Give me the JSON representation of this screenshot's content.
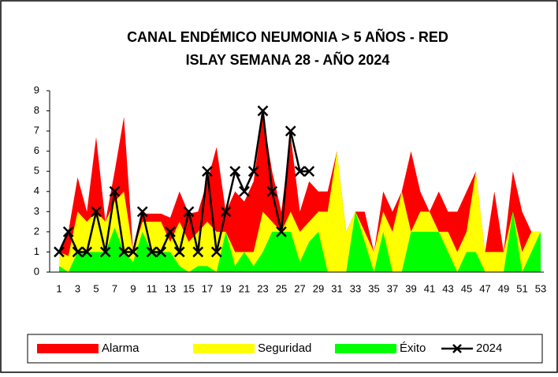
{
  "chart_data": {
    "type": "area",
    "title": "CANAL ENDÉMICO NEUMONIA > 5 AÑOS - RED",
    "subtitle": "ISLAY SEMANA 28 -  AÑO 2024",
    "categories": [
      1,
      null,
      3,
      null,
      5,
      null,
      7,
      null,
      9,
      null,
      11,
      null,
      13,
      null,
      15,
      null,
      17,
      null,
      19,
      null,
      21,
      null,
      23,
      null,
      25,
      null,
      27,
      null,
      29,
      null,
      31,
      null,
      33,
      null,
      35,
      null,
      37,
      null,
      39,
      null,
      41,
      null,
      43,
      null,
      45,
      null,
      47,
      null,
      49,
      null,
      51,
      null,
      53
    ],
    "ylim": [
      0,
      9
    ],
    "yticks": [
      0,
      1,
      2,
      3,
      4,
      5,
      6,
      7,
      8,
      9
    ],
    "series": [
      {
        "name": "Alarma",
        "color": "#ff0000",
        "values": [
          1,
          2,
          4.7,
          3,
          6.7,
          2.5,
          5,
          7.7,
          1,
          2.9,
          2.9,
          2.9,
          2.7,
          4,
          2.9,
          3,
          4.5,
          6.2,
          3,
          4,
          3.5,
          4.5,
          7.8,
          5,
          3,
          6.8,
          3,
          4.5,
          4,
          4,
          6,
          2,
          3,
          3,
          1,
          4,
          3,
          4,
          6,
          4,
          3,
          4,
          3,
          3,
          4,
          5,
          1,
          4,
          1,
          5,
          3,
          2,
          2
        ]
      },
      {
        "name": "Seguridad",
        "color": "#ffff00",
        "values": [
          1,
          0.8,
          3,
          2.5,
          3,
          2.5,
          3.5,
          4,
          1,
          2.5,
          2.5,
          2.5,
          1.5,
          2.5,
          1.5,
          2,
          2.5,
          2,
          2,
          1,
          1,
          1,
          3,
          2.5,
          2,
          3,
          2,
          2.5,
          3,
          3,
          6,
          2,
          3,
          2,
          1,
          3,
          2,
          4,
          2,
          3,
          3,
          2,
          2,
          1,
          2,
          5,
          1,
          1,
          1,
          3,
          1,
          2,
          2
        ]
      },
      {
        "name": "Éxito",
        "color": "#00ff00",
        "values": [
          0.3,
          0,
          1,
          1,
          1,
          1,
          2.2,
          1,
          0.5,
          2,
          1,
          1,
          1,
          0.3,
          0,
          0.3,
          0.3,
          0,
          2,
          0.3,
          1,
          0.3,
          1,
          2,
          2,
          2,
          0.5,
          1.5,
          2,
          0,
          0,
          0,
          3,
          1.5,
          0,
          2,
          0,
          0,
          2,
          2,
          2,
          2,
          1,
          0,
          1,
          1,
          0,
          0,
          0,
          3,
          0,
          1,
          2
        ]
      },
      {
        "name": "2024",
        "color": "#000000",
        "type": "line",
        "values": [
          1,
          2,
          1,
          1,
          3,
          1,
          4,
          1,
          1,
          3,
          1,
          1,
          2,
          1,
          3,
          1,
          5,
          1,
          3,
          5,
          4,
          5,
          8,
          4,
          2,
          7,
          5,
          5,
          null,
          null,
          null,
          null,
          null,
          null,
          null,
          null,
          null,
          null,
          null,
          null,
          null,
          null,
          null,
          null,
          null,
          null,
          null,
          null,
          null,
          null,
          null,
          null,
          null
        ]
      }
    ]
  }
}
